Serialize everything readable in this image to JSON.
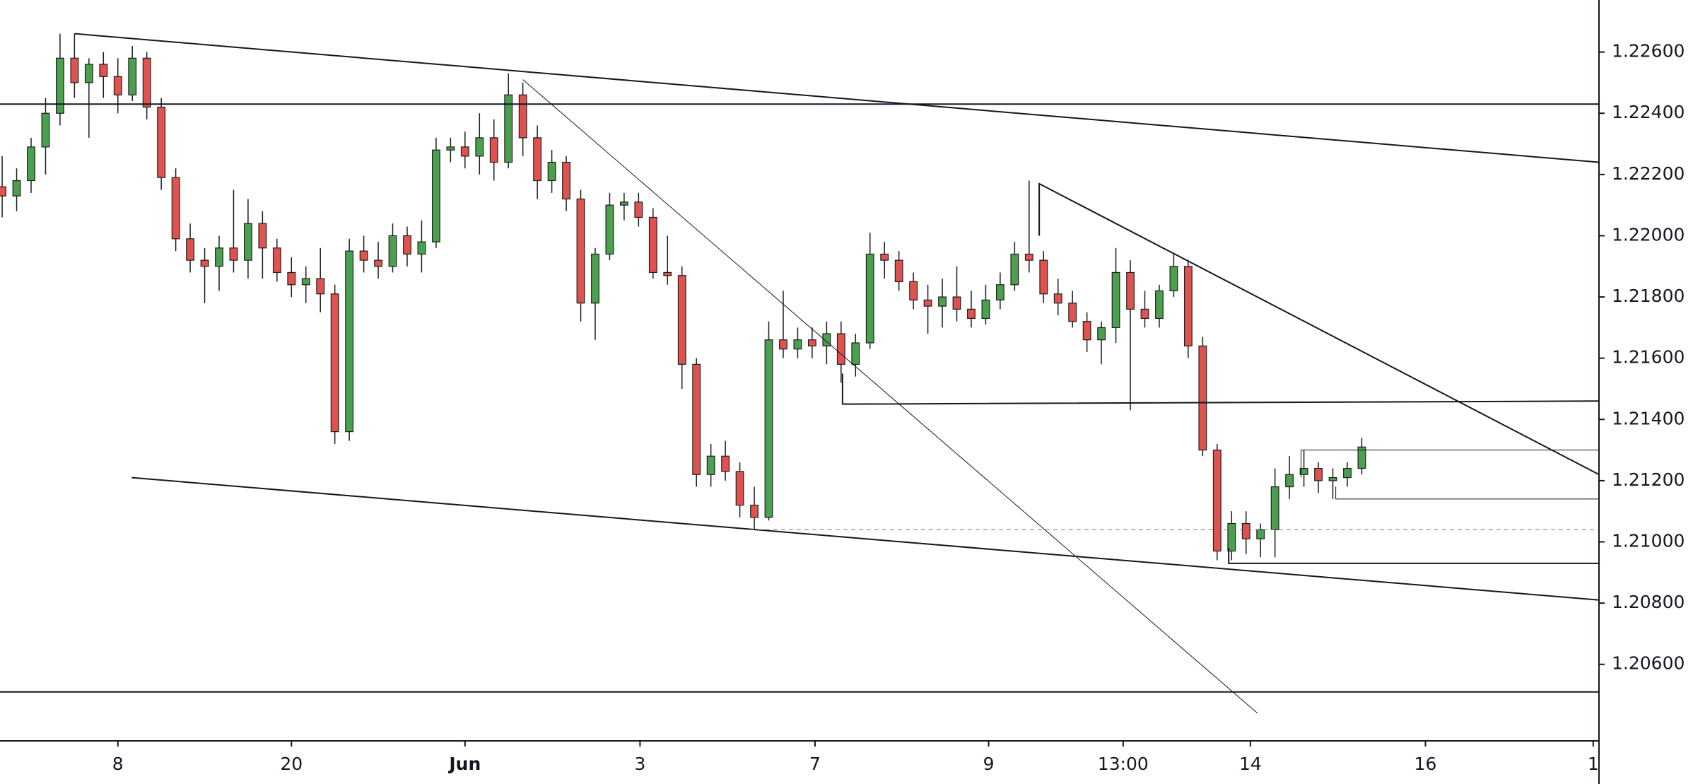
{
  "chart_data": {
    "type": "candlestick",
    "up_color": "#4ba04f",
    "down_color": "#e0524f",
    "outline_color": "#1e1e1e",
    "xlim": [
      -0.15,
      110.4
    ],
    "ylim": [
      1.2035,
      1.2277
    ],
    "xticks": [
      8,
      20,
      {
        "value": 32,
        "label": "Jun",
        "bold": true
      },
      {
        "value": 44.1,
        "label": "3"
      },
      {
        "value": 56.2,
        "label": "7"
      },
      {
        "value": 68.2,
        "label": "9"
      },
      {
        "value": 77.5,
        "label": "13:00"
      },
      {
        "value": 86.3,
        "label": "14"
      },
      {
        "value": 98.4,
        "label": "16"
      },
      {
        "value": 110,
        "label": "1"
      }
    ],
    "yticks": [
      {
        "value": 1.206,
        "label": "1.20600"
      },
      {
        "value": 1.208,
        "label": "1.20800"
      },
      {
        "value": 1.21,
        "label": "1.21000"
      },
      {
        "value": 1.212,
        "label": "1.21200"
      },
      {
        "value": 1.214,
        "label": "1.21400"
      },
      {
        "value": 1.216,
        "label": "1.21600"
      },
      {
        "value": 1.218,
        "label": "1.21800"
      },
      {
        "value": 1.22,
        "label": "1.22000"
      },
      {
        "value": 1.222,
        "label": "1.22200"
      },
      {
        "value": 1.224,
        "label": "1.22400"
      },
      {
        "value": 1.226,
        "label": "1.22600"
      }
    ],
    "open": [
      1.2216,
      1.2213,
      1.2218,
      1.2229,
      1.224,
      1.2258,
      1.225,
      1.2256,
      1.2252,
      1.2246,
      1.2258,
      1.2242,
      1.2219,
      1.2199,
      1.2192,
      1.219,
      1.2196,
      1.2192,
      1.2204,
      1.2196,
      1.2188,
      1.2184,
      1.2186,
      1.2181,
      1.2136,
      1.2195,
      1.2192,
      1.219,
      1.22,
      1.2194,
      1.2198,
      1.2228,
      1.2229,
      1.2226,
      1.2232,
      1.2224,
      1.2246,
      1.2232,
      1.2218,
      1.2224,
      1.2212,
      1.2178,
      1.2194,
      1.221,
      1.2211,
      1.2206,
      1.2188,
      1.2187,
      1.2158,
      1.2122,
      1.2128,
      1.2123,
      1.2112,
      1.2108,
      1.2166,
      1.2163,
      1.2166,
      1.2164,
      1.2168,
      1.2158,
      1.2165,
      1.2194,
      1.2192,
      1.2185,
      1.2179,
      1.2177,
      1.218,
      1.2176,
      1.2173,
      1.2179,
      1.2184,
      1.2194,
      1.2192,
      1.2181,
      1.2178,
      1.2172,
      1.2166,
      1.217,
      1.2188,
      1.2176,
      1.2173,
      1.2182,
      1.219,
      1.2164,
      1.213,
      1.2097,
      1.2106,
      1.2101,
      1.2104,
      1.2118,
      1.2122,
      1.2124,
      1.212,
      1.2121,
      1.2124
    ],
    "high": [
      1.2226,
      1.2222,
      1.2232,
      1.2245,
      1.2266,
      1.2266,
      1.2258,
      1.226,
      1.2258,
      1.2262,
      1.226,
      1.2245,
      1.2222,
      1.2204,
      1.2196,
      1.22,
      1.2215,
      1.2212,
      1.2208,
      1.2199,
      1.2193,
      1.219,
      1.2196,
      1.2184,
      1.2199,
      1.22,
      1.2198,
      1.2204,
      1.2203,
      1.2205,
      1.2232,
      1.2232,
      1.2234,
      1.224,
      1.2238,
      1.2253,
      1.225,
      1.2236,
      1.2228,
      1.2226,
      1.2215,
      1.2196,
      1.2214,
      1.2214,
      1.2214,
      1.2209,
      1.22,
      1.219,
      1.216,
      1.2132,
      1.2133,
      1.2126,
      1.2118,
      1.2172,
      1.2182,
      1.217,
      1.217,
      1.2172,
      1.2172,
      1.2168,
      1.2201,
      1.2198,
      1.2195,
      1.2188,
      1.2184,
      1.2186,
      1.219,
      1.2182,
      1.2184,
      1.2188,
      1.2198,
      1.2218,
      1.2195,
      1.2186,
      1.2182,
      1.2175,
      1.2172,
      1.2196,
      1.2192,
      1.2182,
      1.2184,
      1.2194,
      1.2192,
      1.2167,
      1.2132,
      1.211,
      1.211,
      1.2106,
      1.2124,
      1.2128,
      1.213,
      1.2126,
      1.2124,
      1.2126,
      1.2134
    ],
    "low": [
      1.2206,
      1.2208,
      1.2214,
      1.222,
      1.2236,
      1.2245,
      1.2232,
      1.2245,
      1.224,
      1.2244,
      1.2238,
      1.2215,
      1.2195,
      1.2188,
      1.2178,
      1.2182,
      1.2188,
      1.2186,
      1.2186,
      1.2185,
      1.218,
      1.2178,
      1.2175,
      1.2132,
      1.2133,
      1.2188,
      1.2186,
      1.2188,
      1.219,
      1.2188,
      1.2196,
      1.2224,
      1.2222,
      1.222,
      1.2218,
      1.2222,
      1.2226,
      1.2212,
      1.2214,
      1.2208,
      1.2172,
      1.2166,
      1.2192,
      1.2205,
      1.2203,
      1.2186,
      1.2184,
      1.215,
      1.2118,
      1.2118,
      1.212,
      1.2108,
      1.2104,
      1.2107,
      1.216,
      1.216,
      1.216,
      1.2158,
      1.2152,
      1.2154,
      1.2163,
      1.2186,
      1.2182,
      1.2176,
      1.2168,
      1.217,
      1.2172,
      1.217,
      1.2171,
      1.2176,
      1.2182,
      1.2188,
      1.2178,
      1.2174,
      1.217,
      1.2162,
      1.2158,
      1.2165,
      1.2143,
      1.217,
      1.217,
      1.218,
      1.216,
      1.2128,
      1.2094,
      1.2094,
      1.2096,
      1.2095,
      1.2095,
      1.2114,
      1.2118,
      1.2116,
      1.2114,
      1.2118,
      1.2122
    ],
    "close": [
      1.2213,
      1.2218,
      1.2229,
      1.224,
      1.2258,
      1.225,
      1.2256,
      1.2252,
      1.2246,
      1.2258,
      1.2242,
      1.2219,
      1.2199,
      1.2192,
      1.219,
      1.2196,
      1.2192,
      1.2204,
      1.2196,
      1.2188,
      1.2184,
      1.2186,
      1.2181,
      1.2136,
      1.2195,
      1.2192,
      1.219,
      1.22,
      1.2194,
      1.2198,
      1.2228,
      1.2229,
      1.2226,
      1.2232,
      1.2224,
      1.2246,
      1.2232,
      1.2218,
      1.2224,
      1.2212,
      1.2178,
      1.2194,
      1.221,
      1.2211,
      1.2206,
      1.2188,
      1.2187,
      1.2158,
      1.2122,
      1.2128,
      1.2123,
      1.2112,
      1.2108,
      1.2166,
      1.2163,
      1.2166,
      1.2164,
      1.2168,
      1.2158,
      1.2165,
      1.2194,
      1.2192,
      1.2185,
      1.2179,
      1.2177,
      1.218,
      1.2176,
      1.2173,
      1.2179,
      1.2184,
      1.2194,
      1.2192,
      1.2181,
      1.2178,
      1.2172,
      1.2166,
      1.217,
      1.2188,
      1.2176,
      1.2173,
      1.2182,
      1.219,
      1.2164,
      1.213,
      1.2097,
      1.2106,
      1.2101,
      1.2104,
      1.2118,
      1.2122,
      1.2124,
      1.212,
      1.2121,
      1.2124,
      1.2131
    ],
    "lines": [
      {
        "x": [
          5,
          110.4
        ],
        "y": [
          1.2266,
          1.2224
        ],
        "width": 2
      },
      {
        "x": [
          -0.15,
          110.4
        ],
        "y": [
          1.2243,
          1.2243
        ],
        "width": 2
      },
      {
        "x": [
          36,
          86.8
        ],
        "y": [
          1.2251,
          1.2044
        ],
        "width": 1
      },
      {
        "x": [
          8.96,
          110.4
        ],
        "y": [
          1.2121,
          1.2081
        ],
        "width": 2
      },
      {
        "x": [
          71.7,
          71.7,
          110.4
        ],
        "y": [
          1.22,
          1.2217,
          1.2122
        ],
        "width": 2
      },
      {
        "x": [
          58.1,
          58.1,
          110.4
        ],
        "y": [
          1.2155,
          1.2145,
          1.2146
        ],
        "width": 2
      },
      {
        "x": [
          51.7,
          110.4
        ],
        "y": [
          1.2104,
          1.2104
        ],
        "width": 1,
        "dash": true
      },
      {
        "x": [
          84.8,
          84.8,
          110.4
        ],
        "y": [
          1.2098,
          1.2093,
          1.2093
        ],
        "width": 2
      },
      {
        "x": [
          89.8,
          89.8,
          110.4
        ],
        "y": [
          1.2121,
          1.213,
          1.213
        ],
        "width": 1
      },
      {
        "x": [
          92.2,
          92.2,
          110.4
        ],
        "y": [
          1.2118,
          1.2114,
          1.2114
        ],
        "width": 1
      },
      {
        "x": [
          -0.15,
          110.4
        ],
        "y": [
          1.2051,
          1.2051
        ],
        "width": 2
      }
    ]
  }
}
